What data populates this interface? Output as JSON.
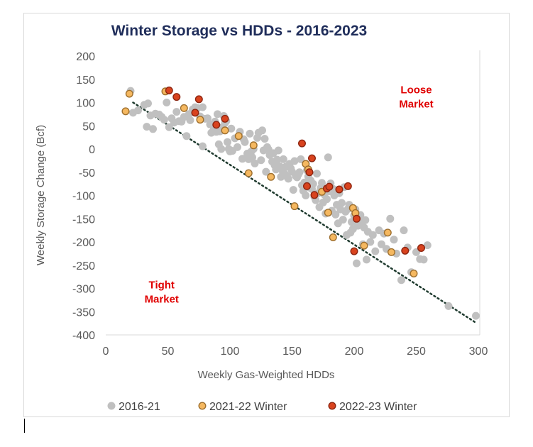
{
  "chart_data": {
    "type": "scatter",
    "title": "Winter Storage vs HDDs - 2016-2023",
    "xlabel": "Weekly Gas-Weighted HDDs",
    "ylabel": "Weekly Storage Change (Bcf)",
    "xlim": [
      0,
      300
    ],
    "ylim": [
      -400,
      200
    ],
    "xticks": [
      0,
      50,
      100,
      150,
      200,
      250,
      300
    ],
    "yticks": [
      200,
      150,
      100,
      50,
      0,
      -50,
      -100,
      -150,
      -200,
      -250,
      -300,
      -350,
      -400
    ],
    "grid": false,
    "legend_position": "bottom",
    "annotations": [
      {
        "text_lines": [
          "Loose",
          "Market"
        ],
        "x": 250,
        "y": 120
      },
      {
        "text_lines": [
          "Tight",
          "Market"
        ],
        "x": 45,
        "y": -300
      }
    ],
    "trendline": {
      "style": "dotted",
      "color": "#1f3b2f",
      "points": [
        [
          22,
          100
        ],
        [
          297,
          -372
        ]
      ]
    },
    "series": [
      {
        "name": "2016-21",
        "color": "#c0c0c0",
        "edge": "#c0c0c0",
        "points": [
          [
            22,
            78
          ],
          [
            26,
            83
          ],
          [
            31,
            95
          ],
          [
            33,
            48
          ],
          [
            36,
            72
          ],
          [
            38,
            43
          ],
          [
            40,
            76
          ],
          [
            43,
            74
          ],
          [
            45,
            69
          ],
          [
            47,
            63
          ],
          [
            49,
            100
          ],
          [
            51,
            47
          ],
          [
            53,
            66
          ],
          [
            55,
            57
          ],
          [
            57,
            80
          ],
          [
            59,
            60
          ],
          [
            61,
            59
          ],
          [
            63,
            69
          ],
          [
            65,
            28
          ],
          [
            67,
            75
          ],
          [
            68,
            62
          ],
          [
            70,
            85
          ],
          [
            72,
            90
          ],
          [
            74,
            88
          ],
          [
            76,
            70
          ],
          [
            78,
            6
          ],
          [
            80,
            65
          ],
          [
            82,
            66
          ],
          [
            84,
            53
          ],
          [
            85,
            35
          ],
          [
            87,
            46
          ],
          [
            88,
            59
          ],
          [
            89,
            37
          ],
          [
            90,
            75
          ],
          [
            91,
            10
          ],
          [
            92,
            38
          ],
          [
            93,
            0
          ],
          [
            94,
            47
          ],
          [
            95,
            71
          ],
          [
            96,
            56
          ],
          [
            97,
            60
          ],
          [
            98,
            15
          ],
          [
            99,
            0
          ],
          [
            100,
            -5
          ],
          [
            101,
            44
          ],
          [
            102,
            -4
          ],
          [
            104,
            23
          ],
          [
            106,
            4
          ],
          [
            108,
            37
          ],
          [
            110,
            -21
          ],
          [
            111,
            21
          ],
          [
            112,
            15
          ],
          [
            114,
            -10
          ],
          [
            115,
            -22
          ],
          [
            116,
            33
          ],
          [
            117,
            -6
          ],
          [
            118,
            -18
          ],
          [
            119,
            0
          ],
          [
            120,
            -31
          ],
          [
            122,
            24
          ],
          [
            123,
            35
          ],
          [
            125,
            -24
          ],
          [
            126,
            40
          ],
          [
            127,
            -3
          ],
          [
            128,
            22
          ],
          [
            129,
            -49
          ],
          [
            130,
            4
          ],
          [
            131,
            -1
          ],
          [
            132,
            -13
          ],
          [
            134,
            -27
          ],
          [
            135,
            -9
          ],
          [
            136,
            -35
          ],
          [
            137,
            -44
          ],
          [
            138,
            -23
          ],
          [
            139,
            -3
          ],
          [
            140,
            -37
          ],
          [
            141,
            -60
          ],
          [
            142,
            -46
          ],
          [
            143,
            -22
          ],
          [
            144,
            -53
          ],
          [
            145,
            -38
          ],
          [
            146,
            -60
          ],
          [
            147,
            -64
          ],
          [
            148,
            -32
          ],
          [
            149,
            -42
          ],
          [
            150,
            -49
          ],
          [
            151,
            -88
          ],
          [
            152,
            -26
          ],
          [
            153,
            -58
          ],
          [
            154,
            -61
          ],
          [
            155,
            -55
          ],
          [
            156,
            -50
          ],
          [
            157,
            -22
          ],
          [
            158,
            -78
          ],
          [
            159,
            -90
          ],
          [
            160,
            -72
          ],
          [
            161,
            -100
          ],
          [
            162,
            -46
          ],
          [
            163,
            -59
          ],
          [
            164,
            -83
          ],
          [
            165,
            -68
          ],
          [
            166,
            -86
          ],
          [
            167,
            -75
          ],
          [
            168,
            -103
          ],
          [
            169,
            -110
          ],
          [
            170,
            -53
          ],
          [
            171,
            -95
          ],
          [
            172,
            -125
          ],
          [
            173,
            -84
          ],
          [
            174,
            -73
          ],
          [
            175,
            -115
          ],
          [
            176,
            -98
          ],
          [
            177,
            -139
          ],
          [
            178,
            -108
          ],
          [
            179,
            -18
          ],
          [
            180,
            -91
          ],
          [
            181,
            -74
          ],
          [
            182,
            -133
          ],
          [
            183,
            -86
          ],
          [
            184,
            -100
          ],
          [
            185,
            -141
          ],
          [
            186,
            -120
          ],
          [
            187,
            -160
          ],
          [
            188,
            -95
          ],
          [
            189,
            -130
          ],
          [
            190,
            -116
          ],
          [
            191,
            -152
          ],
          [
            192,
            -82
          ],
          [
            193,
            -135
          ],
          [
            194,
            -185
          ],
          [
            195,
            -129
          ],
          [
            196,
            -120
          ],
          [
            197,
            -180
          ],
          [
            198,
            -157
          ],
          [
            199,
            -172
          ],
          [
            200,
            -143
          ],
          [
            201,
            -130
          ],
          [
            202,
            -246
          ],
          [
            203,
            -165
          ],
          [
            204,
            -150
          ],
          [
            205,
            -142
          ],
          [
            206,
            -160
          ],
          [
            207,
            -205
          ],
          [
            208,
            -169
          ],
          [
            209,
            -153
          ],
          [
            210,
            -238
          ],
          [
            211,
            -178
          ],
          [
            213,
            -200
          ],
          [
            215,
            -185
          ],
          [
            217,
            -220
          ],
          [
            220,
            -175
          ],
          [
            222,
            -205
          ],
          [
            224,
            -182
          ],
          [
            226,
            -215
          ],
          [
            229,
            -150
          ],
          [
            232,
            -195
          ],
          [
            234,
            -225
          ],
          [
            238,
            -282
          ],
          [
            240,
            -175
          ],
          [
            243,
            -212
          ],
          [
            246,
            -265
          ],
          [
            250,
            -222
          ],
          [
            253,
            -237
          ],
          [
            256,
            -238
          ],
          [
            259,
            -207
          ],
          [
            276,
            -338
          ],
          [
            298,
            -359
          ],
          [
            20,
            125
          ],
          [
            34,
            98
          ],
          [
            78,
            90
          ]
        ]
      },
      {
        "name": "2021-22 Winter",
        "color": "#f5b860",
        "edge": "#9e6f2e",
        "points": [
          [
            16,
            81
          ],
          [
            19,
            119
          ],
          [
            48,
            124
          ],
          [
            63,
            88
          ],
          [
            76,
            63
          ],
          [
            96,
            40
          ],
          [
            107,
            28
          ],
          [
            115,
            -52
          ],
          [
            119,
            8
          ],
          [
            133,
            -60
          ],
          [
            152,
            -123
          ],
          [
            161,
            -32
          ],
          [
            163,
            -44
          ],
          [
            174,
            -92
          ],
          [
            179,
            -137
          ],
          [
            183,
            -190
          ],
          [
            199,
            -127
          ],
          [
            201,
            -138
          ],
          [
            208,
            -208
          ],
          [
            227,
            -180
          ],
          [
            230,
            -222
          ],
          [
            248,
            -268
          ]
        ]
      },
      {
        "name": "2022-23 Winter",
        "color": "#d9431e",
        "edge": "#8c2510",
        "points": [
          [
            51,
            126
          ],
          [
            57,
            112
          ],
          [
            75,
            107
          ],
          [
            72,
            78
          ],
          [
            89,
            52
          ],
          [
            96,
            65
          ],
          [
            158,
            12
          ],
          [
            162,
            -80
          ],
          [
            164,
            -50
          ],
          [
            166,
            -20
          ],
          [
            168,
            -99
          ],
          [
            178,
            -85
          ],
          [
            180,
            -81
          ],
          [
            188,
            -87
          ],
          [
            195,
            -80
          ],
          [
            200,
            -220
          ],
          [
            202,
            -150
          ],
          [
            241,
            -219
          ],
          [
            254,
            -213
          ]
        ]
      }
    ]
  }
}
